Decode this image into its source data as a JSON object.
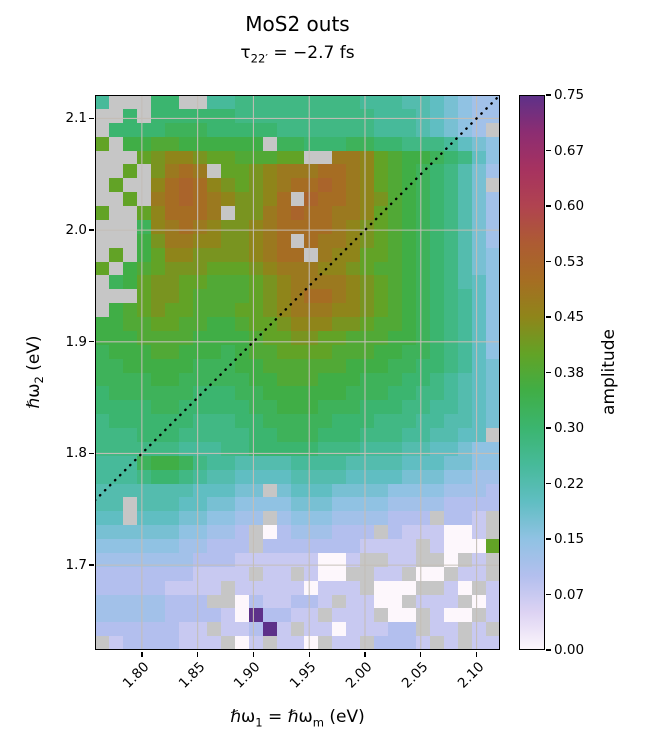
{
  "title": "MoS2 outs",
  "subtitle": {
    "prefix": "τ",
    "sub": "22′",
    "suffix": " = −2.7 fs"
  },
  "x_axis": {
    "label": {
      "p1": "ℏω",
      "s1": "1",
      "p2": " = ℏω",
      "s2": "m",
      "p3": " (eV)"
    },
    "tick_labels": [
      "1.80",
      "1.85",
      "1.90",
      "1.95",
      "2.00",
      "2.05",
      "2.10"
    ]
  },
  "y_axis": {
    "label": {
      "p1": "ℏω",
      "s1": "2",
      "p3": " (eV)"
    },
    "tick_labels": [
      "2.1",
      "2.0",
      "1.9",
      "1.8",
      "1.7"
    ]
  },
  "colorbar": {
    "label": "amplitude",
    "tick_labels": [
      "0.00",
      "0.07",
      "0.15",
      "0.22",
      "0.30",
      "0.38",
      "0.45",
      "0.53",
      "0.60",
      "0.67",
      "0.75"
    ]
  },
  "chart_data": {
    "type": "heatmap",
    "title": "MoS2 outs",
    "subtitle": "τ22′ = −2.7 fs",
    "xlabel": "ℏω1 = ℏωm (eV)",
    "ylabel": "ℏω2 (eV)",
    "colorbar_label": "amplitude",
    "x_range": [
      1.758,
      2.121
    ],
    "y_range": [
      1.624,
      2.121
    ],
    "value_range": [
      0,
      0.75
    ],
    "x_ticks": [
      1.8,
      1.85,
      1.9,
      1.95,
      2.0,
      2.05,
      2.1
    ],
    "y_ticks": [
      2.1,
      2.0,
      1.9,
      1.8,
      1.7
    ],
    "colorbar_ticks": {
      "values": [
        0,
        0.075,
        0.15,
        0.225,
        0.3,
        0.375,
        0.45,
        0.525,
        0.6,
        0.675,
        0.75
      ],
      "labels": [
        "0.00",
        "0.07",
        "0.15",
        "0.22",
        "0.30",
        "0.38",
        "0.45",
        "0.53",
        "0.60",
        "0.67",
        "0.75"
      ]
    },
    "grid_lines": {
      "on": true,
      "color": "rgba(196,190,182,0.95)"
    },
    "diagonal_line": {
      "from": [
        1.758,
        1.758
      ],
      "to": [
        2.121,
        2.121
      ],
      "style": "dotted",
      "color": "#000000"
    },
    "colormap": {
      "masked_color": "#c6c6c6",
      "stops": [
        [
          0.0,
          "#fdf7fc"
        ],
        [
          0.05,
          "#ddd3f3"
        ],
        [
          0.1,
          "#b3bfee"
        ],
        [
          0.15,
          "#90c2e3"
        ],
        [
          0.2,
          "#60bec2"
        ],
        [
          0.25,
          "#47ba9a"
        ],
        [
          0.3,
          "#3bb56f"
        ],
        [
          0.35,
          "#40ae46"
        ],
        [
          0.4,
          "#62a326"
        ],
        [
          0.45,
          "#8f851a"
        ],
        [
          0.5,
          "#a66d23"
        ],
        [
          0.55,
          "#ad5b33"
        ],
        [
          0.6,
          "#b04350"
        ],
        [
          0.65,
          "#a63260"
        ],
        [
          0.7,
          "#8c2d72"
        ],
        [
          0.75,
          "#5d3189"
        ]
      ]
    },
    "grid": {
      "cols": 29,
      "rows": 40,
      "cell_size_ev": 0.0125,
      "encoding": "value = index*0.025 ; chars 0-9 map to index 0-9, A-U map to index 10-30, X = masked cell",
      "masked_char": "X",
      "rows_top_to_bottom": [
        "AXXXCCXXAABBBBBBBBBAAA9987655",
        "XXCXCCCCCCBBBBBBBBBBAAA987655",
        "XCCCCDDDCCCCCBBBBBBBAAA98765X",
        "GXEEFFEEEEEEXDDCCCDDCCBBBA876",
        "XXXGHIIHGGFFFGGXXJJIGFEEDCB86",
        "XXGXHJKJXGGHIJJJKKJIGFEDCB975",
        "XGXXIKLKIHGHIJKKLKJIGFEDCB97X",
        "XXGXJKLKJIHHIKXLKKJIHFEDCB975",
        "GXXGIKKKJXHHJKLKKJJIGFEDCB975",
        "XXXDIJKJIHHIJKKKKJIHGFEDCB975",
        "XXXEHJJIIHHIJKXKJJIHGFEDCB975",
        "XGXEGIIHHHHIJKKXJIIGGFEDCB976",
        "GXEFGHHHGGGHIJJJIIHGFFEDCB976",
        "XDEGHHGGFFFGHIJJJJIHGFEDCB986",
        "XXXGHHGFFFFGHIJKKJIHGFEDCBA86",
        "XEFGHGGFFFGGHIJJJIIHGFEDCBA86",
        "EEFFGGFFEEFGGHIIIHHGFFEDCBA86",
        "EEEFFFFEEEEFGGHHGGFFFEEDCBA86",
        "DEEEFFEEEDEFFGGGGFFFEEDDCBA86",
        "DDEEEEEDDDEEFFFFFFEEEDDCCBA87",
        "DDDDEEDDDDDEEFFFEEEDDDCCBA987",
        "CDDDDDDCCCDDEEEEEEDDDCCBBA987",
        "CCCCDDCCCCCDDEEEDDDCCCBBAA987",
        "BCCCCCCBBBCCDDDDDCCCBBBAA9987",
        "BBBCCCBBBBBCCDDDCCCBBBAA9988X",
        "BBBBBBAAABBCCCCCBBBAAA9988766",
        "AAADEEDBAA9999AAAA99998887766",
        "AAABCCBA998888999988887776655",
        "999999988877X7888777766665554",
        "99X99988776666777666655554444",
        "88X888776655X56665555444X443X",
        "77777766554X04555444X4333003X",
        "66666655444X44444443333X3000G",
        "5555555444333333003XX33XX0X3X",
        "44444443333X33X300XX33X00X33X",
        "444443333X333330333X000XX30X3",
        "55555444XX0433443X3300X333X03",
        "55555444430U4433X333X00X300X3",
        "44444433X334U3X33033344X33X3X",
        "X34444333X03X330X33X4443X3X33"
      ]
    }
  }
}
